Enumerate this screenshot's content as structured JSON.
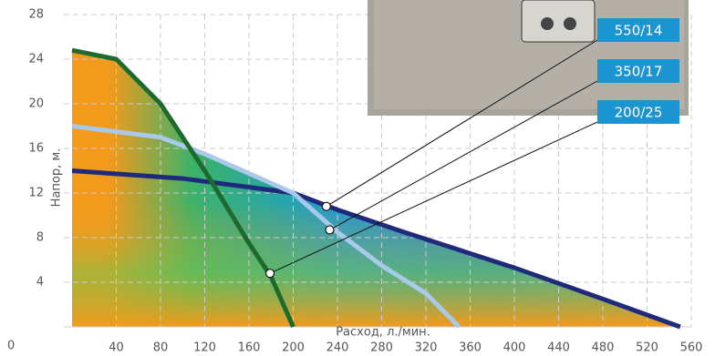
{
  "chart_data": {
    "type": "line",
    "xlabel": "Расход, л./мин.",
    "ylabel": "Напор, м.",
    "xlim": [
      0,
      560
    ],
    "ylim": [
      0,
      28
    ],
    "xticks": [
      40,
      80,
      120,
      160,
      200,
      240,
      280,
      320,
      360,
      400,
      440,
      480,
      520,
      560
    ],
    "yticks": [
      0,
      4,
      8,
      12,
      16,
      20,
      24,
      28
    ],
    "grid": true,
    "series": [
      {
        "name": "550/14",
        "color": "#1f2a7a",
        "x": [
          0,
          100,
          200,
          240,
          300,
          400,
          480,
          550
        ],
        "values": [
          14,
          13.3,
          12,
          10.5,
          8.5,
          5.3,
          2.5,
          0
        ],
        "callout_x": 230,
        "callout_y": 10.8
      },
      {
        "name": "350/17",
        "color": "#a9c9ea",
        "x": [
          0,
          80,
          120,
          200,
          240,
          280,
          320,
          350
        ],
        "values": [
          18,
          17,
          15.5,
          12,
          8.5,
          5.5,
          3,
          0
        ],
        "callout_x": 233,
        "callout_y": 8.7
      },
      {
        "name": "200/25",
        "color": "#1d6b2c",
        "x": [
          0,
          40,
          80,
          120,
          160,
          180,
          200
        ],
        "values": [
          24.8,
          24,
          20,
          14,
          7.5,
          4.5,
          0
        ],
        "callout_x": 179,
        "callout_y": 4.8
      }
    ]
  }
}
